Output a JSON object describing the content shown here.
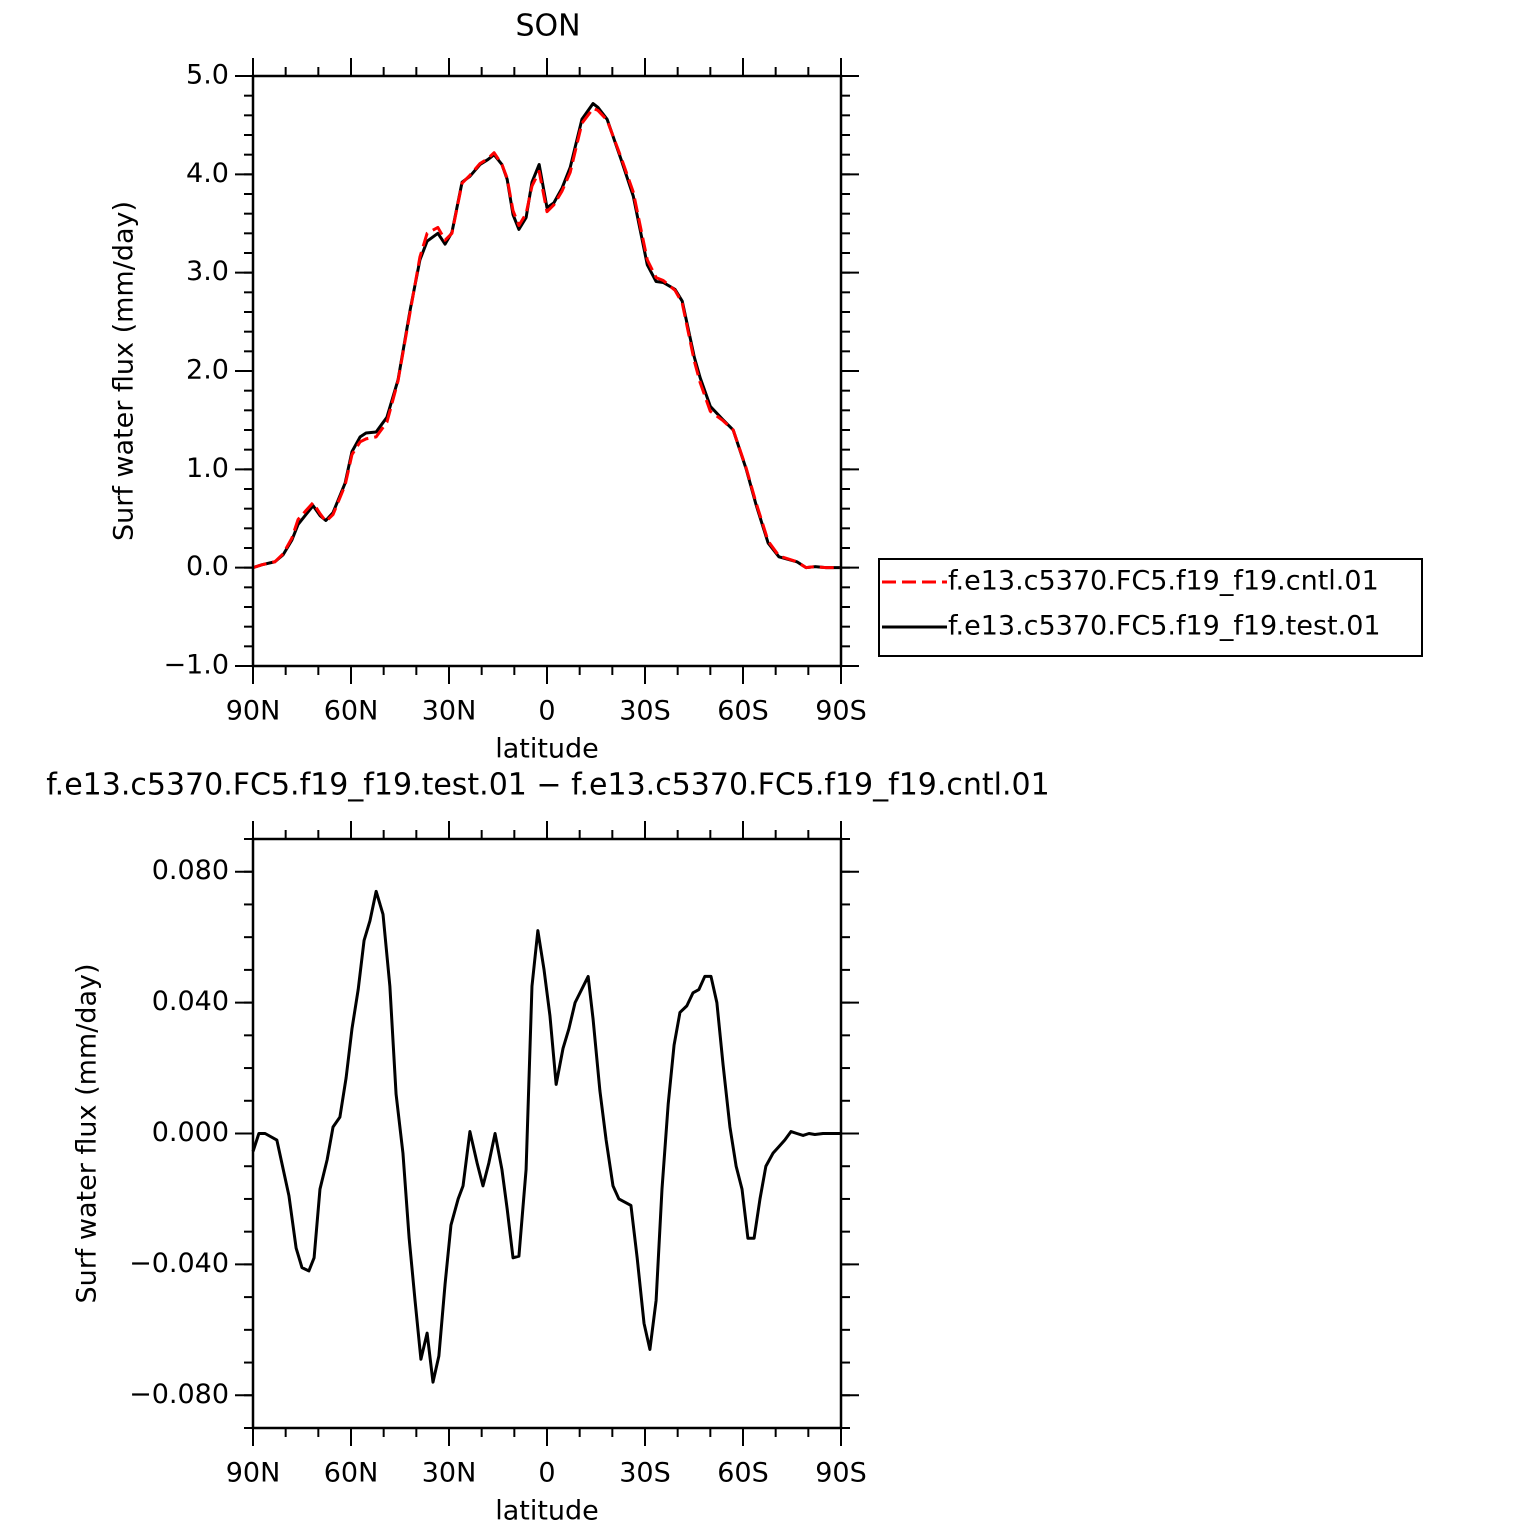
{
  "chart_data": [
    {
      "type": "line",
      "title": "SON",
      "xlabel": "latitude",
      "ylabel": "Surf water flux (mm/day)",
      "xlim": [
        90,
        -90
      ],
      "ylim": [
        -1,
        5
      ],
      "xticks": [
        {
          "value": 90,
          "label": "90N"
        },
        {
          "value": 60,
          "label": "60N"
        },
        {
          "value": 30,
          "label": "30N"
        },
        0,
        {
          "value": -30,
          "label": "30S"
        },
        {
          "value": -60,
          "label": "60S"
        },
        {
          "value": -90,
          "label": "90S"
        }
      ],
      "yticks": [
        {
          "value": -1,
          "label": "−1.0"
        },
        {
          "value": 0,
          "label": "0.0"
        },
        {
          "value": 1,
          "label": "1.0"
        },
        {
          "value": 2,
          "label": "2.0"
        },
        {
          "value": 3,
          "label": "3.0"
        },
        {
          "value": 4,
          "label": "4.0"
        },
        {
          "value": 5,
          "label": "5.0"
        }
      ],
      "xminor": 10,
      "yminor": 0.2,
      "legend": "right",
      "x": [
        90,
        87.2,
        83.3,
        80.8,
        78.1,
        76.2,
        73.8,
        71.6,
        69.5,
        67.7,
        65.5,
        61.8,
        59.7,
        57.2,
        55.4,
        52.3,
        49.0,
        45.6,
        41.9,
        38.9,
        36.7,
        33.4,
        31.2,
        29.1,
        26.0,
        23.6,
        20.5,
        18.1,
        16.2,
        13.8,
        12.2,
        10.4,
        8.6,
        6.4,
        4.6,
        2.4,
        0.0,
        -2.1,
        -4.6,
        -7.1,
        -10.7,
        -14.1,
        -15.6,
        -18.4,
        -22.7,
        -26.4,
        -30.7,
        -33.4,
        -35.6,
        -39.2,
        -41.4,
        -45.1,
        -46.9,
        -50.0,
        -53.7,
        -57.0,
        -61.0,
        -64.0,
        -67.7,
        -71.0,
        -76.5,
        -79.3,
        -82.0,
        -85.4,
        -90
      ],
      "series": [
        {
          "name": "f.e13.c5370.FC5.f19_f19.cntl.01",
          "color": "#ff0000",
          "dashed": true,
          "values": [
            0,
            0.03,
            0.06,
            0.14,
            0.3,
            0.49,
            0.58,
            0.66,
            0.55,
            0.47,
            0.54,
            0.84,
            1.15,
            1.28,
            1.31,
            1.33,
            1.48,
            1.9,
            2.6,
            3.16,
            3.4,
            3.46,
            3.33,
            3.4,
            3.91,
            3.99,
            4.11,
            4.16,
            4.22,
            4.1,
            3.96,
            3.63,
            3.48,
            3.6,
            3.88,
            4.03,
            3.62,
            3.69,
            3.83,
            4.02,
            4.52,
            4.67,
            4.65,
            4.55,
            4.17,
            3.82,
            3.13,
            2.95,
            2.92,
            2.82,
            2.69,
            2.1,
            1.88,
            1.59,
            1.5,
            1.4,
            1.01,
            0.66,
            0.27,
            0.12,
            0.06,
            0.0,
            0.01,
            0.0,
            0.0
          ]
        },
        {
          "name": "f.e13.c5370.FC5.f19_f19.test.01",
          "color": "#000000",
          "dashed": false,
          "values": [
            0,
            0.03,
            0.06,
            0.13,
            0.28,
            0.44,
            0.54,
            0.63,
            0.53,
            0.48,
            0.56,
            0.86,
            1.18,
            1.33,
            1.37,
            1.38,
            1.53,
            1.91,
            2.62,
            3.13,
            3.32,
            3.4,
            3.29,
            3.41,
            3.92,
            3.98,
            4.1,
            4.15,
            4.2,
            4.1,
            3.95,
            3.59,
            3.44,
            3.56,
            3.92,
            4.1,
            3.66,
            3.71,
            3.86,
            4.07,
            4.56,
            4.72,
            4.68,
            4.56,
            4.15,
            3.78,
            3.08,
            2.91,
            2.9,
            2.83,
            2.71,
            2.14,
            1.93,
            1.64,
            1.51,
            1.4,
            1.0,
            0.64,
            0.25,
            0.11,
            0.06,
            0.0,
            0.01,
            0.0,
            0.0
          ]
        }
      ]
    },
    {
      "type": "line",
      "title": "f.e13.c5370.FC5.f19_f19.test.01 − f.e13.c5370.FC5.f19_f19.cntl.01",
      "xlabel": "latitude",
      "ylabel": "Surf water flux (mm/day)",
      "xlim": [
        90,
        -90
      ],
      "ylim": [
        -0.09,
        0.09
      ],
      "xticks": [
        {
          "value": 90,
          "label": "90N"
        },
        {
          "value": 60,
          "label": "60N"
        },
        {
          "value": 30,
          "label": "30N"
        },
        0,
        {
          "value": -30,
          "label": "30S"
        },
        {
          "value": -60,
          "label": "60S"
        },
        {
          "value": -90,
          "label": "90S"
        }
      ],
      "yticks": [
        {
          "value": -0.08,
          "label": "−0.080"
        },
        {
          "value": -0.04,
          "label": "−0.040"
        },
        {
          "value": 0,
          "label": "0.000"
        },
        {
          "value": 0.04,
          "label": "0.040"
        },
        {
          "value": 0.08,
          "label": "0.080"
        }
      ],
      "xminor": 10,
      "yminor": 0.01,
      "color": "#000000",
      "x": [
        90,
        88.2,
        86.3,
        82.7,
        79.0,
        76.8,
        75.0,
        72.9,
        71.3,
        69.5,
        67.3,
        65.5,
        63.4,
        61.5,
        59.7,
        57.8,
        56.0,
        54.2,
        52.3,
        50.2,
        48.1,
        46.2,
        44.1,
        42.2,
        40.4,
        38.6,
        36.7,
        34.9,
        33.1,
        31.2,
        29.4,
        27.2,
        25.7,
        23.6,
        21.4,
        19.6,
        17.8,
        15.9,
        13.8,
        12.2,
        10.4,
        8.6,
        6.4,
        4.6,
        2.8,
        0.9,
        -0.9,
        -2.8,
        -4.9,
        -6.7,
        -8.6,
        -12.6,
        -14.1,
        -16.2,
        -18.1,
        -20.2,
        -22.0,
        -25.7,
        -27.6,
        -29.7,
        -31.5,
        -33.4,
        -35.2,
        -37.1,
        -38.9,
        -40.7,
        -42.8,
        -44.7,
        -46.5,
        -48.3,
        -50.2,
        -52.0,
        -53.9,
        -56.0,
        -57.9,
        -59.7,
        -61.5,
        -63.4,
        -65.2,
        -67.0,
        -69.2,
        -71.0,
        -72.8,
        -74.7,
        -76.5,
        -78.4,
        -80.2,
        -82.0,
        -84.5,
        -90
      ],
      "values": [
        -0.0055,
        0,
        0,
        -0.002,
        -0.019,
        -0.035,
        -0.041,
        -0.042,
        -0.038,
        -0.017,
        -0.008,
        0.002,
        0.005,
        0.017,
        0.032,
        0.044,
        0.059,
        0.065,
        0.074,
        0.067,
        0.045,
        0.012,
        -0.006,
        -0.032,
        -0.051,
        -0.069,
        -0.061,
        -0.076,
        -0.068,
        -0.046,
        -0.028,
        -0.02,
        -0.016,
        0.0006,
        -0.009,
        -0.016,
        -0.009,
        0,
        -0.011,
        -0.023,
        -0.038,
        -0.0375,
        -0.011,
        0.045,
        0.062,
        0.05,
        0.036,
        0.015,
        0.026,
        0.032,
        0.04,
        0.048,
        0.035,
        0.013,
        -0.002,
        -0.016,
        -0.02,
        -0.022,
        -0.038,
        -0.058,
        -0.066,
        -0.051,
        -0.017,
        0.009,
        0.027,
        0.037,
        0.039,
        0.043,
        0.044,
        0.048,
        0.048,
        0.04,
        0.021,
        0.002,
        -0.01,
        -0.017,
        -0.032,
        -0.032,
        -0.02,
        -0.01,
        -0.006,
        -0.004,
        -0.002,
        0.0006,
        0,
        -0.0006,
        0,
        -0.0003,
        0,
        0
      ]
    }
  ]
}
